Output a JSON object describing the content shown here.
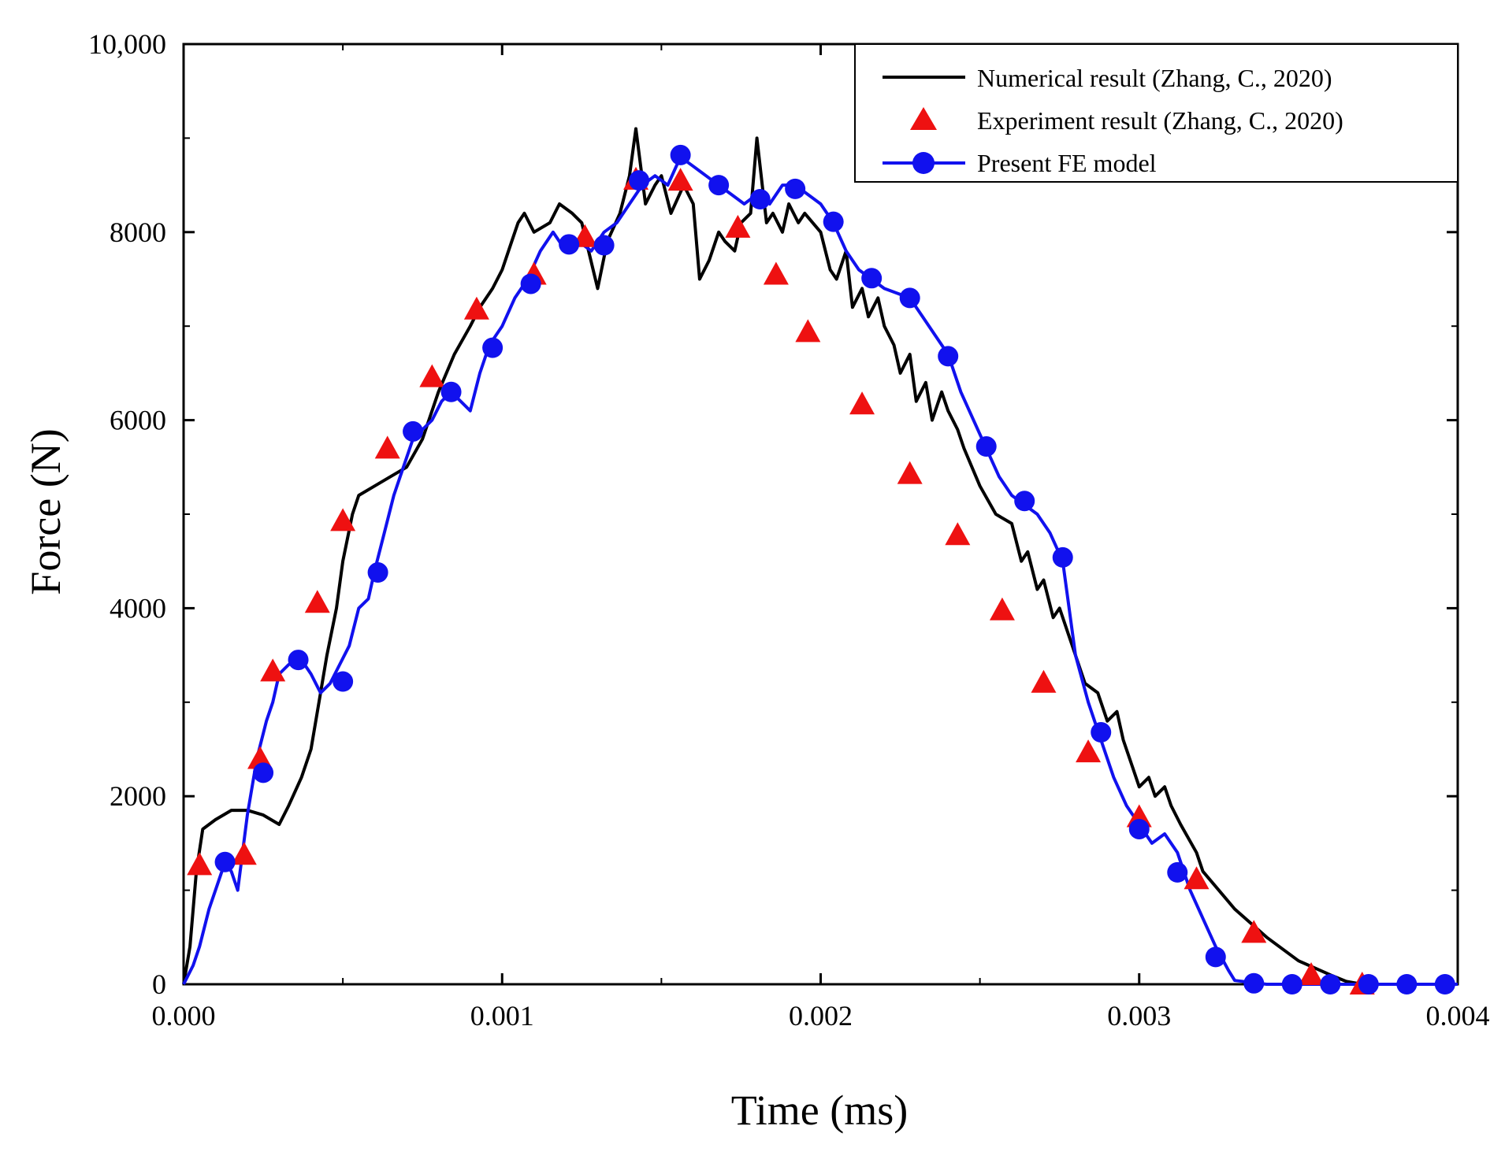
{
  "chart_data": {
    "type": "line",
    "title": "",
    "xlabel": "Time (ms)",
    "ylabel": "Force (N)",
    "xlim": [
      0,
      0.004
    ],
    "ylim": [
      0,
      10000
    ],
    "x_ticks": [
      0,
      0.001,
      0.002,
      0.003,
      0.004
    ],
    "x_tick_labels": [
      "0.000",
      "0.001",
      "0.002",
      "0.003",
      "0.004"
    ],
    "y_ticks": [
      0,
      2000,
      4000,
      6000,
      8000,
      10000
    ],
    "y_tick_labels": [
      "0",
      "2000",
      "4000",
      "6000",
      "8000",
      "10,000"
    ],
    "grid": false,
    "legend_position": "top-right",
    "colors": {
      "numerical": "#000000",
      "experiment": "#ee1111",
      "present": "#1111ee"
    },
    "series": [
      {
        "name": "Numerical result (Zhang, C., 2020)",
        "style": "line",
        "x": [
          0,
          2e-05,
          4e-05,
          6e-05,
          0.0001,
          0.00015,
          0.0002,
          0.00025,
          0.0003,
          0.00033,
          0.00037,
          0.0004,
          0.00042,
          0.00045,
          0.00048,
          0.0005,
          0.00053,
          0.00055,
          0.0006,
          0.00065,
          0.0007,
          0.00075,
          0.0008,
          0.00085,
          0.0009,
          0.00093,
          0.00097,
          0.001,
          0.00103,
          0.00105,
          0.00107,
          0.0011,
          0.00115,
          0.00118,
          0.00122,
          0.00125,
          0.0013,
          0.00133,
          0.00137,
          0.0014,
          0.00142,
          0.00145,
          0.00148,
          0.0015,
          0.00153,
          0.00157,
          0.0016,
          0.00162,
          0.00165,
          0.00168,
          0.0017,
          0.00173,
          0.00175,
          0.00178,
          0.0018,
          0.00183,
          0.00185,
          0.00188,
          0.0019,
          0.00193,
          0.00195,
          0.002,
          0.00203,
          0.00205,
          0.00208,
          0.0021,
          0.00213,
          0.00215,
          0.00218,
          0.0022,
          0.00223,
          0.00225,
          0.00228,
          0.0023,
          0.00233,
          0.00235,
          0.00238,
          0.0024,
          0.00243,
          0.00245,
          0.0025,
          0.00255,
          0.0026,
          0.00263,
          0.00265,
          0.00268,
          0.0027,
          0.00273,
          0.00275,
          0.0028,
          0.00283,
          0.00287,
          0.0029,
          0.00293,
          0.00295,
          0.00298,
          0.003,
          0.00303,
          0.00305,
          0.00308,
          0.0031,
          0.00313,
          0.00318,
          0.0032,
          0.00325,
          0.0033,
          0.0034,
          0.0035,
          0.0036,
          0.00365,
          0.0037,
          0.004
        ],
        "y": [
          0,
          400,
          1200,
          1650,
          1750,
          1850,
          1850,
          1800,
          1700,
          1900,
          2200,
          2500,
          2900,
          3500,
          4000,
          4500,
          5000,
          5200,
          5300,
          5400,
          5500,
          5800,
          6300,
          6700,
          7000,
          7200,
          7400,
          7600,
          7900,
          8100,
          8200,
          8000,
          8100,
          8300,
          8200,
          8100,
          7400,
          7900,
          8200,
          8600,
          9100,
          8300,
          8500,
          8600,
          8200,
          8500,
          8300,
          7500,
          7700,
          8000,
          7900,
          7800,
          8100,
          8200,
          9000,
          8100,
          8200,
          8000,
          8300,
          8100,
          8200,
          8000,
          7600,
          7500,
          7800,
          7200,
          7400,
          7100,
          7300,
          7000,
          6800,
          6500,
          6700,
          6200,
          6400,
          6000,
          6300,
          6100,
          5900,
          5700,
          5300,
          5000,
          4900,
          4500,
          4600,
          4200,
          4300,
          3900,
          4000,
          3500,
          3200,
          3100,
          2800,
          2900,
          2600,
          2300,
          2100,
          2200,
          2000,
          2100,
          1900,
          1700,
          1400,
          1200,
          1000,
          800,
          500,
          250,
          100,
          30,
          0,
          0
        ]
      },
      {
        "name": "Experiment result (Zhang, C., 2020)",
        "style": "markers",
        "marker": "triangle",
        "x": [
          5e-05,
          0.00019,
          0.00024,
          0.00028,
          0.00042,
          0.0005,
          0.00064,
          0.00078,
          0.00092,
          0.0011,
          0.00126,
          0.00142,
          0.00156,
          0.00174,
          0.00186,
          0.00196,
          0.00213,
          0.00228,
          0.00243,
          0.00257,
          0.0027,
          0.00284,
          0.003,
          0.00318,
          0.00336,
          0.00354,
          0.0037
        ],
        "y": [
          1270,
          1380,
          2400,
          3330,
          4060,
          4930,
          5700,
          6460,
          7180,
          7550,
          7950,
          8560,
          8550,
          8050,
          7550,
          6940,
          6170,
          5430,
          4780,
          3980,
          3210,
          2470,
          1780,
          1120,
          550,
          100,
          0
        ]
      },
      {
        "name": "Present FE model",
        "style": "line-markers",
        "marker": "circle",
        "x": [
          0,
          3e-05,
          5e-05,
          8e-05,
          0.00011,
          0.00013,
          0.00015,
          0.00017,
          0.0002,
          0.00023,
          0.00026,
          0.00028,
          0.0003,
          0.00033,
          0.00036,
          0.00038,
          0.0004,
          0.00043,
          0.00046,
          0.00049,
          0.00052,
          0.00055,
          0.00058,
          0.0006,
          0.00063,
          0.00066,
          0.00069,
          0.00072,
          0.00075,
          0.00078,
          0.00081,
          0.00084,
          0.00087,
          0.0009,
          0.00093,
          0.00096,
          0.001,
          0.00104,
          0.00108,
          0.00112,
          0.00116,
          0.0012,
          0.00124,
          0.00128,
          0.00132,
          0.00136,
          0.0014,
          0.00144,
          0.00148,
          0.00152,
          0.00156,
          0.0016,
          0.00164,
          0.00168,
          0.00172,
          0.00176,
          0.0018,
          0.00184,
          0.00188,
          0.00192,
          0.00196,
          0.002,
          0.00204,
          0.00208,
          0.00212,
          0.00216,
          0.0022,
          0.00224,
          0.00228,
          0.00232,
          0.00236,
          0.0024,
          0.00244,
          0.00248,
          0.00252,
          0.00256,
          0.0026,
          0.00264,
          0.00268,
          0.00272,
          0.00276,
          0.0028,
          0.00284,
          0.00288,
          0.00292,
          0.00296,
          0.003,
          0.00304,
          0.00308,
          0.00312,
          0.00316,
          0.0032,
          0.00324,
          0.00328,
          0.0033,
          0.00335,
          0.0034,
          0.0035,
          0.0036,
          0.0037,
          0.0038,
          0.004
        ],
        "y": [
          0,
          200,
          400,
          800,
          1100,
          1300,
          1200,
          1000,
          1800,
          2400,
          2800,
          3000,
          3300,
          3400,
          3450,
          3400,
          3300,
          3100,
          3200,
          3400,
          3600,
          4000,
          4100,
          4400,
          4800,
          5200,
          5500,
          5800,
          5900,
          6000,
          6200,
          6300,
          6200,
          6100,
          6500,
          6800,
          7000,
          7300,
          7500,
          7800,
          8000,
          7800,
          7900,
          7800,
          8000,
          8100,
          8300,
          8500,
          8600,
          8500,
          8800,
          8700,
          8600,
          8500,
          8400,
          8300,
          8400,
          8300,
          8500,
          8500,
          8400,
          8300,
          8100,
          7800,
          7600,
          7500,
          7400,
          7350,
          7300,
          7100,
          6900,
          6700,
          6300,
          6000,
          5700,
          5400,
          5200,
          5100,
          5000,
          4800,
          4500,
          3500,
          3000,
          2600,
          2200,
          1900,
          1700,
          1500,
          1600,
          1400,
          1000,
          700,
          400,
          150,
          40,
          20,
          0,
          0,
          0,
          0,
          0,
          0
        ]
      }
    ],
    "present_markers": {
      "x": [
        0.00013,
        0.00025,
        0.00036,
        0.0005,
        0.00061,
        0.00072,
        0.00084,
        0.00097,
        0.00109,
        0.00121,
        0.00132,
        0.00143,
        0.00156,
        0.00168,
        0.00181,
        0.00192,
        0.00204,
        0.00216,
        0.00228,
        0.0024,
        0.00252,
        0.00264,
        0.00276,
        0.00288,
        0.003,
        0.00312,
        0.00324,
        0.00336,
        0.00348,
        0.0036,
        0.00372,
        0.00384,
        0.00396
      ],
      "y": [
        1300,
        2250,
        3450,
        3220,
        4380,
        5880,
        6300,
        6770,
        7450,
        7870,
        7860,
        8550,
        8820,
        8500,
        8350,
        8460,
        8110,
        7510,
        7300,
        6680,
        5720,
        5140,
        4540,
        2680,
        1650,
        1190,
        290,
        10,
        0,
        0,
        0,
        0,
        0
      ]
    }
  }
}
